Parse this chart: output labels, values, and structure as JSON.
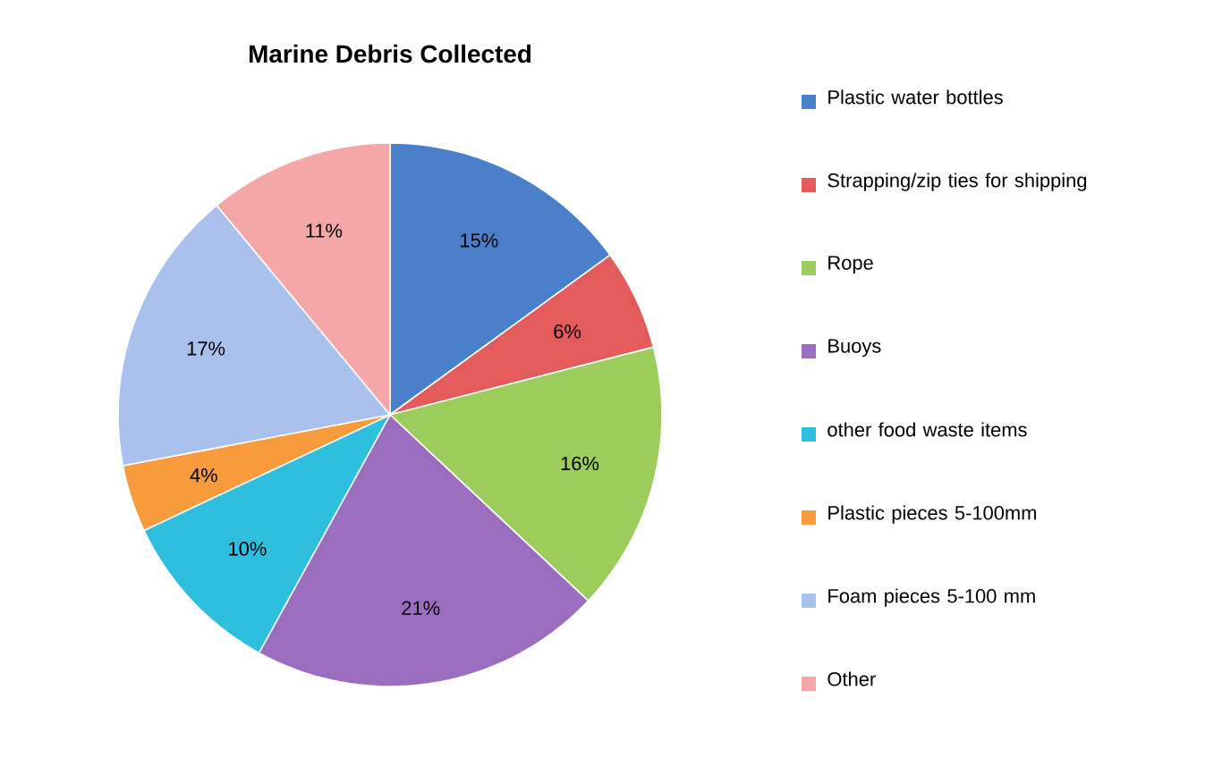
{
  "chart_data": {
    "type": "pie",
    "title": "Marine Debris Collected",
    "categories": [
      "Plastic water bottles",
      "Strapping/zip ties for shipping",
      "Rope",
      "Buoys",
      "other food waste items",
      "Plastic pieces 5-100mm",
      "Foam pieces 5-100 mm",
      "Other"
    ],
    "values": [
      15,
      6,
      16,
      21,
      10,
      4,
      17,
      11
    ],
    "colors": [
      "#4a7fc9",
      "#e35b5b",
      "#9ccd5c",
      "#9a6dbf",
      "#2ebfdf",
      "#f79b3c",
      "#a9c1ec",
      "#f4a7a6"
    ],
    "value_labels": [
      "15%",
      "6%",
      "16%",
      "21%",
      "10%",
      "4%",
      "17%",
      "11%"
    ],
    "legend": "right"
  }
}
